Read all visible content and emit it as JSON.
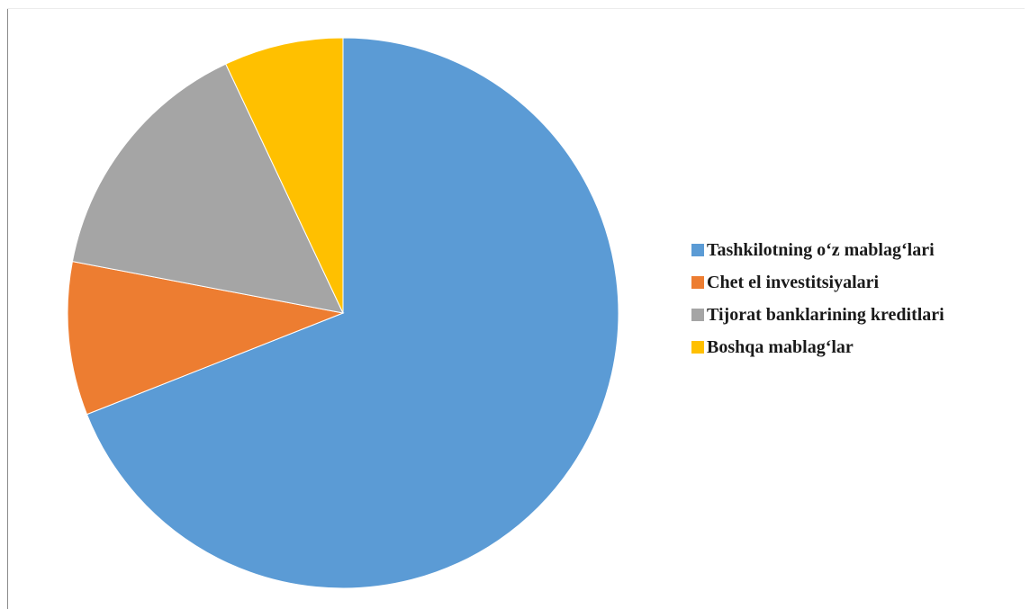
{
  "chart_data": {
    "type": "pie",
    "title": "",
    "categories": [
      "Tashkilotning o‘z mablag‘lari",
      "Chet el investitsiyalari",
      "Tijorat banklarining kreditlari",
      "Boshqa mablag‘lar"
    ],
    "values": [
      69,
      9,
      15,
      7
    ],
    "colors": [
      "#5b9bd5",
      "#ed7d31",
      "#a5a5a5",
      "#ffc000"
    ],
    "legend_position": "right",
    "start_angle": "12 o'clock",
    "direction": "clockwise"
  }
}
